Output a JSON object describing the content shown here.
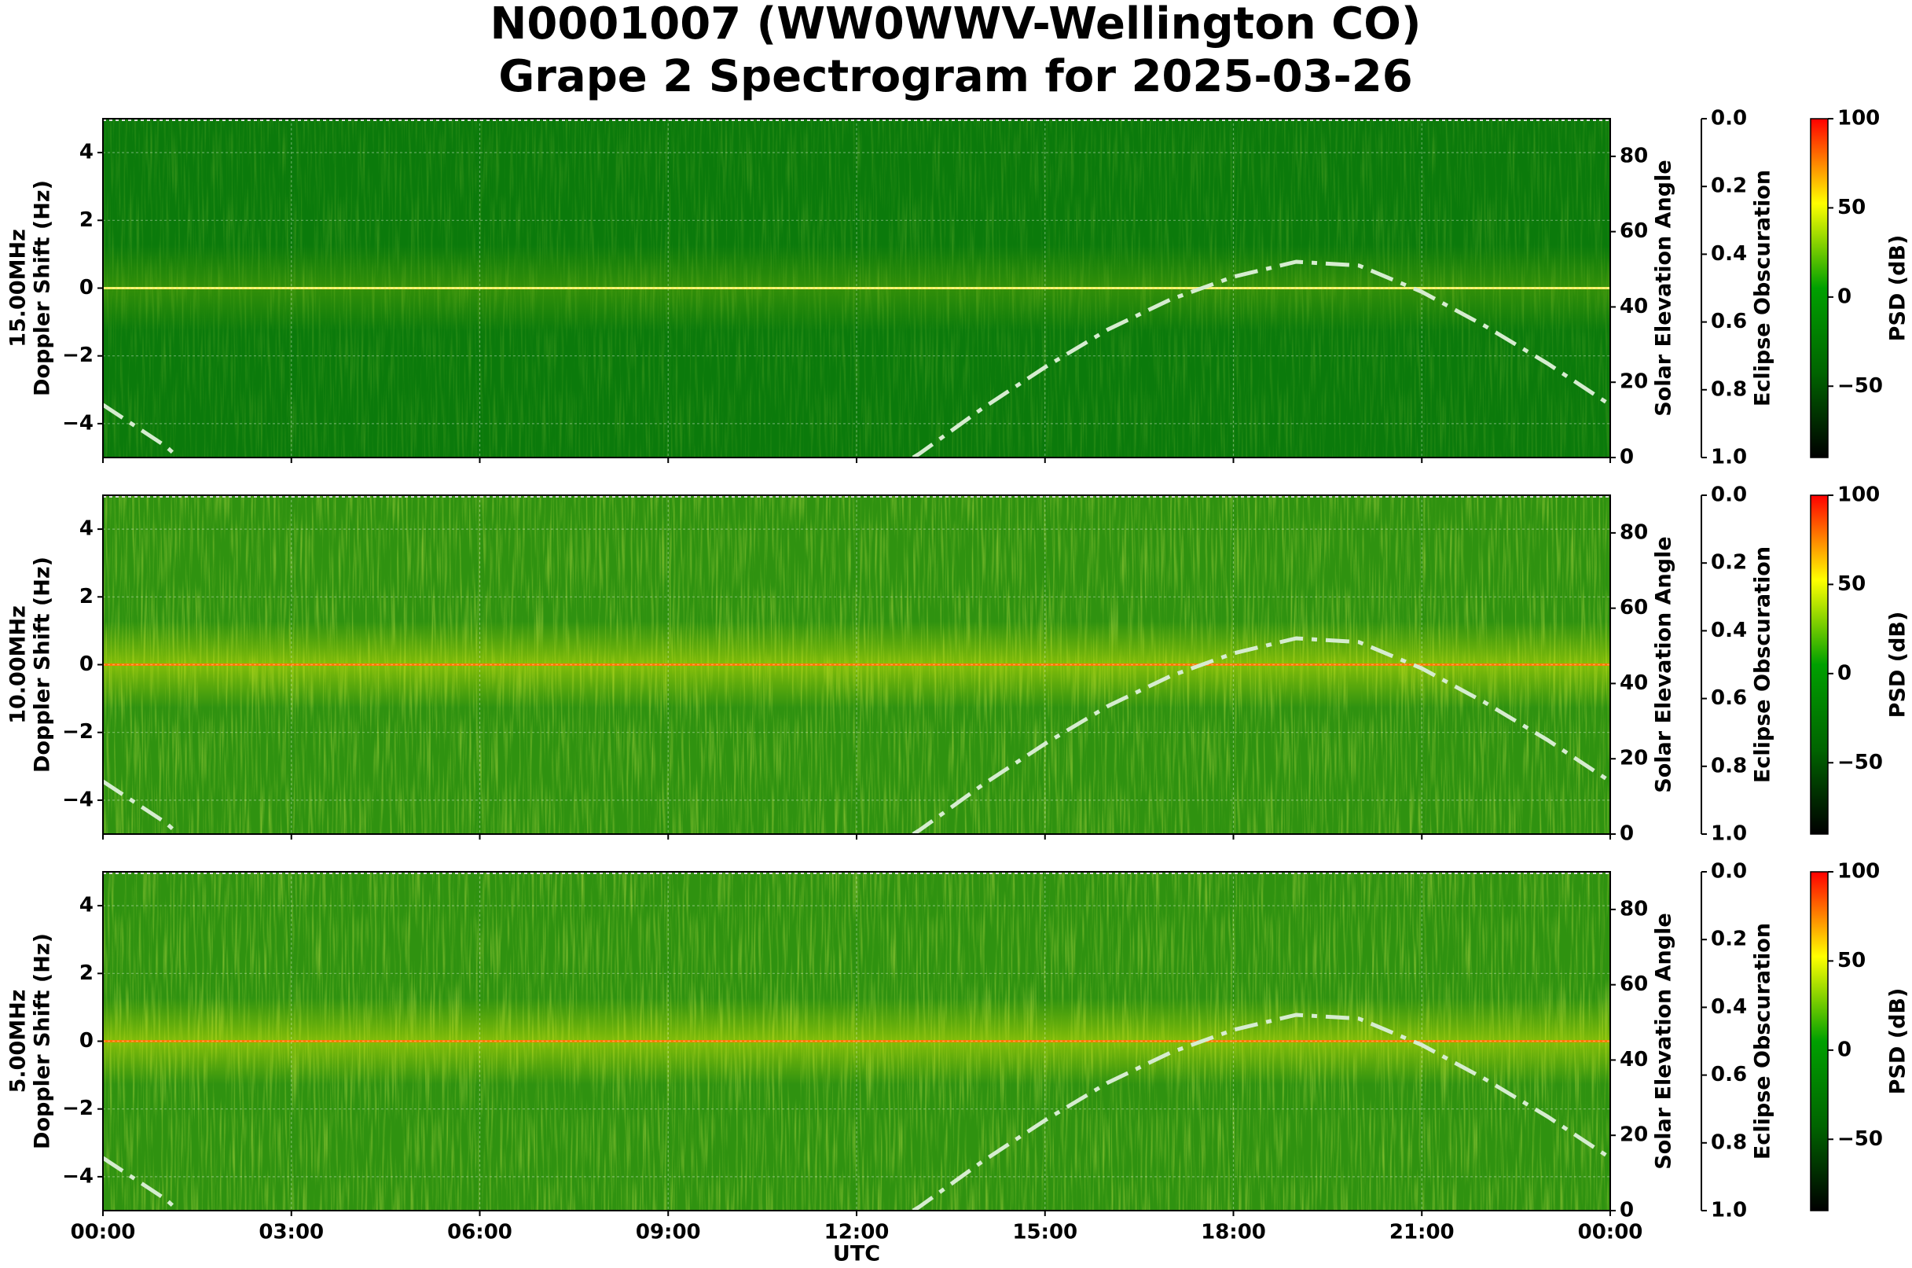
{
  "title": [
    "N0001007 (WW0WWV-Wellington CO)",
    "Grape 2 Spectrogram for 2025-03-26"
  ],
  "xaxis": {
    "label": "UTC",
    "lim": [
      0,
      24
    ],
    "ticks": [
      {
        "value": 0,
        "label": "00:00"
      },
      {
        "value": 3,
        "label": "03:00"
      },
      {
        "value": 6,
        "label": "06:00"
      },
      {
        "value": 9,
        "label": "09:00"
      },
      {
        "value": 12,
        "label": "12:00"
      },
      {
        "value": 15,
        "label": "15:00"
      },
      {
        "value": 18,
        "label": "18:00"
      },
      {
        "value": 21,
        "label": "21:00"
      },
      {
        "value": 24,
        "label": "00:00"
      }
    ]
  },
  "chart_data": [
    {
      "type": "line",
      "ylabel": [
        "15.00MHz",
        "Doppler Shift (Hz)"
      ],
      "ylim": [
        -5,
        5
      ],
      "yticks": [
        {
          "value": -4,
          "label": "−4"
        },
        {
          "value": -2,
          "label": "−2"
        },
        0,
        2,
        4
      ],
      "grid": true,
      "y2label": "Solar Elevation Angle",
      "y2lim": [
        0,
        90
      ],
      "y2ticks": [
        0,
        20,
        40,
        60,
        80
      ],
      "y3label": "Eclipse Obscuration",
      "y3lim": [
        1,
        0
      ],
      "y3ticks": [
        {
          "value": 0,
          "label": "0.0"
        },
        0.2,
        0.4,
        0.6,
        0.8,
        {
          "value": 1,
          "label": "1.0"
        }
      ],
      "colorbar": {
        "label": "PSD (dB)",
        "lim": [
          -90,
          100
        ],
        "ticks": [
          {
            "value": -50,
            "label": "−50"
          },
          0,
          50,
          100
        ],
        "colors": [
          "#000000",
          "#006400",
          "#00a000",
          "#ffff00",
          "#ff0000"
        ]
      },
      "series": [
        {
          "name": "Solar Elevation",
          "color": "#d6ecd0",
          "axis": "y2",
          "x": [
            0,
            1,
            1.2,
            2,
            12.9,
            13,
            14,
            15,
            16,
            17,
            18,
            19,
            20,
            21,
            22,
            23,
            24
          ],
          "values": [
            14,
            3,
            0,
            null,
            0,
            1,
            13,
            24,
            34,
            42,
            48,
            52,
            51,
            44,
            35,
            25,
            14
          ]
        }
      ]
    },
    {
      "type": "line",
      "ylabel": [
        "10.00MHz",
        "Doppler Shift (Hz)"
      ],
      "ylim": [
        -5,
        5
      ],
      "yticks": [
        {
          "value": -4,
          "label": "−4"
        },
        {
          "value": -2,
          "label": "−2"
        },
        0,
        2,
        4
      ],
      "grid": true,
      "y2label": "Solar Elevation Angle",
      "y2lim": [
        0,
        90
      ],
      "y2ticks": [
        0,
        20,
        40,
        60,
        80
      ],
      "y3label": "Eclipse Obscuration",
      "y3lim": [
        1,
        0
      ],
      "y3ticks": [
        {
          "value": 0,
          "label": "0.0"
        },
        0.2,
        0.4,
        0.6,
        0.8,
        {
          "value": 1,
          "label": "1.0"
        }
      ],
      "colorbar": {
        "label": "PSD (dB)",
        "lim": [
          -90,
          100
        ],
        "ticks": [
          {
            "value": -50,
            "label": "−50"
          },
          0,
          50,
          100
        ],
        "colors": [
          "#000000",
          "#006400",
          "#00a000",
          "#ffff00",
          "#ff0000"
        ]
      },
      "series": [
        {
          "name": "Solar Elevation",
          "color": "#d6ecd0",
          "axis": "y2",
          "x": [
            0,
            1,
            1.2,
            2,
            12.9,
            13,
            14,
            15,
            16,
            17,
            18,
            19,
            20,
            21,
            22,
            23,
            24
          ],
          "values": [
            14,
            3,
            0,
            null,
            0,
            1,
            13,
            24,
            34,
            42,
            48,
            52,
            51,
            44,
            35,
            25,
            14
          ]
        }
      ]
    },
    {
      "type": "line",
      "ylabel": [
        "5.00MHz",
        "Doppler Shift (Hz)"
      ],
      "ylim": [
        -5,
        5
      ],
      "yticks": [
        {
          "value": -4,
          "label": "−4"
        },
        {
          "value": -2,
          "label": "−2"
        },
        0,
        2,
        4
      ],
      "grid": true,
      "y2label": "Solar Elevation Angle",
      "y2lim": [
        0,
        90
      ],
      "y2ticks": [
        0,
        20,
        40,
        60,
        80
      ],
      "y3label": "Eclipse Obscuration",
      "y3lim": [
        1,
        0
      ],
      "y3ticks": [
        {
          "value": 0,
          "label": "0.0"
        },
        0.2,
        0.4,
        0.6,
        0.8,
        {
          "value": 1,
          "label": "1.0"
        }
      ],
      "colorbar": {
        "label": "PSD (dB)",
        "lim": [
          -90,
          100
        ],
        "ticks": [
          {
            "value": -50,
            "label": "−50"
          },
          0,
          50,
          100
        ],
        "colors": [
          "#000000",
          "#006400",
          "#00a000",
          "#ffff00",
          "#ff0000"
        ]
      },
      "series": [
        {
          "name": "Solar Elevation",
          "color": "#d6ecd0",
          "axis": "y2",
          "x": [
            0,
            1,
            1.2,
            2,
            12.9,
            13,
            14,
            15,
            16,
            17,
            18,
            19,
            20,
            21,
            22,
            23,
            24
          ],
          "values": [
            14,
            3,
            0,
            null,
            0,
            1,
            13,
            24,
            34,
            42,
            48,
            52,
            51,
            44,
            35,
            25,
            14
          ]
        }
      ]
    }
  ]
}
